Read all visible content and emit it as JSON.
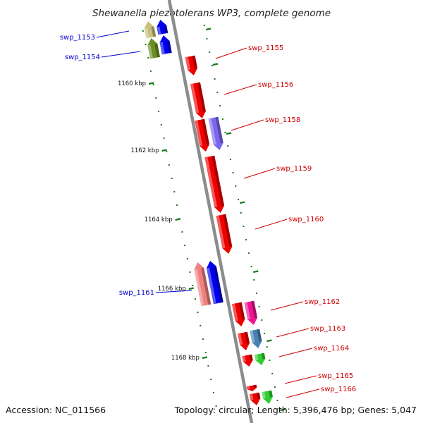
{
  "title": "Shewanella piezotolerans WP3, complete genome",
  "accession": "Accession: NC_011566",
  "summary": "Topology: circular; Length: 5,396,476 bp; Genes: 5,047",
  "colors": {
    "backbone": "#8c8c8c",
    "tick": "#1a7a1a",
    "forward_label": "#cc0000",
    "reverse_label": "#0000cc"
  },
  "ticks": [
    {
      "label": "1160 kbp"
    },
    {
      "label": "1162 kbp"
    },
    {
      "label": "1164 kbp"
    },
    {
      "label": "1166 kbp"
    },
    {
      "label": "1168 kbp"
    }
  ],
  "genes": [
    {
      "label": "swp_1153",
      "strand": "reverse",
      "colors": [
        "#c8bf7e",
        "#0000ee"
      ]
    },
    {
      "label": "swp_1154",
      "strand": "reverse",
      "colors": [
        "#6b8e23",
        "#0000ee"
      ]
    },
    {
      "label": "swp_1155",
      "strand": "forward",
      "colors": [
        "#ee0000"
      ]
    },
    {
      "label": "swp_1156",
      "strand": "forward",
      "colors": [
        "#ee0000"
      ]
    },
    {
      "label": "swp_1158",
      "strand": "forward",
      "colors": [
        "#ee0000",
        "#7b68ee"
      ]
    },
    {
      "label": "swp_1159",
      "strand": "forward",
      "colors": [
        "#ee0000"
      ]
    },
    {
      "label": "swp_1160",
      "strand": "forward",
      "colors": [
        "#ee0000"
      ]
    },
    {
      "label": "swp_1161",
      "strand": "reverse",
      "colors": [
        "#f08080",
        "#0000ee"
      ]
    },
    {
      "label": "swp_1162",
      "strand": "forward",
      "colors": [
        "#ee0000",
        "#ee1493"
      ]
    },
    {
      "label": "swp_1163",
      "strand": "forward",
      "colors": [
        "#ee0000",
        "#4682b4"
      ]
    },
    {
      "label": "swp_1164",
      "strand": "forward",
      "colors": [
        "#ee0000",
        "#32cd32"
      ]
    },
    {
      "label": "swp_1165",
      "strand": "forward",
      "colors": [
        "#ee0000"
      ]
    },
    {
      "label": "swp_1166",
      "strand": "forward",
      "colors": [
        "#ee0000",
        "#32cd32"
      ]
    }
  ]
}
